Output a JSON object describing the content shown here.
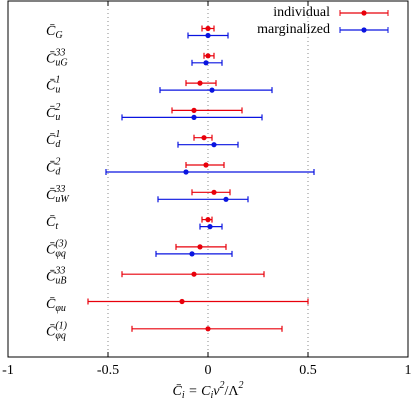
{
  "chart_data": {
    "type": "errorbar",
    "xlabel": {
      "sym": "C̄",
      "sub": "i",
      "rest": " = C",
      "sub2": "i",
      "v": "v",
      "sup": "2",
      "slash": "/Λ",
      "sup2": "2"
    },
    "categories": [
      {
        "sym": "C̄",
        "sub": "G"
      },
      {
        "sym": "C̄",
        "sub": "uG",
        "sup": "33"
      },
      {
        "sym": "C̄",
        "sub": "u",
        "sup": "1"
      },
      {
        "sym": "C̄",
        "sub": "u",
        "sup": "2"
      },
      {
        "sym": "C̄",
        "sub": "d",
        "sup": "1"
      },
      {
        "sym": "C̄",
        "sub": "d",
        "sup": "2"
      },
      {
        "sym": "C̄",
        "sub": "uW",
        "sup": "33"
      },
      {
        "sym": "C̄",
        "sub": "t"
      },
      {
        "sym": "C̄",
        "sub": "φq",
        "sup": "(3)"
      },
      {
        "sym": "C̄",
        "sub": "uB",
        "sup": "33"
      },
      {
        "sym": "C̄",
        "sub": "φu"
      },
      {
        "sym": "C̄",
        "sub": "φq",
        "sup": "(1)"
      }
    ],
    "series": [
      {
        "name": "individual",
        "color": "#e8000b",
        "values": [
          0.0,
          0.0,
          -0.04,
          -0.07,
          -0.02,
          -0.01,
          0.03,
          0.0,
          -0.04,
          -0.07,
          -0.13,
          0.0
        ],
        "low": [
          -0.03,
          -0.02,
          -0.11,
          -0.18,
          -0.07,
          -0.11,
          -0.08,
          -0.03,
          -0.16,
          -0.43,
          -0.6,
          -0.38
        ],
        "high": [
          0.03,
          0.03,
          0.04,
          0.17,
          0.02,
          0.08,
          0.11,
          0.02,
          0.09,
          0.28,
          0.5,
          0.37
        ]
      },
      {
        "name": "marginalized",
        "color": "#0a14e0",
        "values": [
          0.0,
          -0.01,
          0.02,
          -0.07,
          0.03,
          -0.11,
          0.09,
          0.01,
          -0.08,
          null,
          null,
          null
        ],
        "low": [
          -0.1,
          -0.08,
          -0.24,
          -0.43,
          -0.15,
          -0.51,
          -0.25,
          -0.04,
          -0.26,
          null,
          null,
          null
        ],
        "high": [
          0.1,
          0.07,
          0.32,
          0.27,
          0.15,
          0.53,
          0.2,
          0.07,
          0.12,
          null,
          null,
          null
        ]
      }
    ],
    "xlim": [
      -1,
      1
    ],
    "xticks": [
      -1,
      -0.5,
      0,
      0.5,
      1
    ],
    "grid": true,
    "legend": "upper right"
  }
}
